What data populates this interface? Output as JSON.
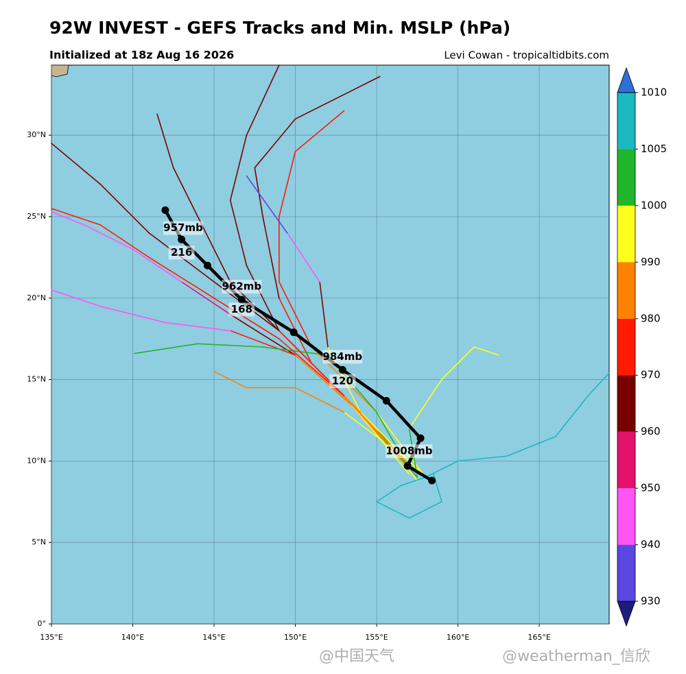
{
  "chart_data": {
    "type": "track",
    "title": "92W INVEST - GEFS Tracks and Min. MSLP (hPa)",
    "subtitle": "Initialized at 18z Aug 16 2026",
    "credit": "Levi Cowan - tropicaltidbits.com",
    "xlim": [
      135,
      169.3
    ],
    "ylim": [
      0,
      34.3
    ],
    "xticks": [
      {
        "value": 135,
        "label": "135°E"
      },
      {
        "value": 140,
        "label": "140°E"
      },
      {
        "value": 145,
        "label": "145°E"
      },
      {
        "value": 150,
        "label": "150°E"
      },
      {
        "value": 155,
        "label": "155°E"
      },
      {
        "value": 160,
        "label": "160°E"
      },
      {
        "value": 165,
        "label": "165°E"
      }
    ],
    "yticks": [
      {
        "value": 0,
        "label": "0°"
      },
      {
        "value": 5,
        "label": "5°N"
      },
      {
        "value": 10,
        "label": "10°N"
      },
      {
        "value": 15,
        "label": "15°N"
      },
      {
        "value": 20,
        "label": "20°N"
      },
      {
        "value": 25,
        "label": "25°N"
      },
      {
        "value": 30,
        "label": "30°N"
      }
    ],
    "grid": true,
    "colorbar": {
      "levels": [
        930,
        940,
        950,
        960,
        970,
        980,
        990,
        1000,
        1005,
        1010
      ],
      "colors": [
        "#5a48e0",
        "#ff55f5",
        "#e4126c",
        "#780000",
        "#ff1a00",
        "#ff8200",
        "#ffff1e",
        "#20b52a",
        "#1bb8c2"
      ],
      "under": "#1d1d80",
      "over": "#2f6fd6"
    },
    "members": [
      {
        "x": [
          157.5,
          155,
          152,
          149,
          147,
          146,
          147,
          149
        ],
        "y": [
          9,
          12,
          15,
          18,
          22,
          26,
          30,
          34.3
        ],
        "mslp": [
          1006,
          1000,
          990,
          975,
          965,
          962,
          962,
          965
        ]
      },
      {
        "x": [
          157,
          154,
          151,
          149,
          148,
          147.5,
          150,
          155.2
        ],
        "y": [
          9.5,
          13,
          16,
          20,
          25,
          28,
          31,
          33.6
        ],
        "mslp": [
          1006,
          998,
          985,
          975,
          968,
          966,
          965,
          965
        ]
      },
      {
        "x": [
          158,
          155,
          151,
          149,
          149,
          150,
          153
        ],
        "y": [
          9,
          13,
          17,
          21,
          25,
          29,
          31.5
        ],
        "mslp": [
          1006,
          995,
          982,
          975,
          975,
          978,
          978
        ]
      },
      {
        "x": [
          157.5,
          154.5,
          150,
          146,
          143,
          140,
          137,
          135
        ],
        "y": [
          8.8,
          12.5,
          16.5,
          19,
          21,
          23,
          24.5,
          25.3
        ],
        "mslp": [
          1006,
          997,
          985,
          965,
          950,
          945,
          945,
          945
        ]
      },
      {
        "x": [
          157,
          153,
          149,
          145,
          141,
          138,
          135
        ],
        "y": [
          9.2,
          14,
          18,
          21,
          24,
          27,
          29.5
        ],
        "mslp": [
          1006,
          990,
          975,
          963,
          962,
          962,
          962
        ]
      },
      {
        "x": [
          157,
          154,
          152,
          151.5,
          149.5,
          147
        ],
        "y": [
          9.5,
          13,
          17,
          21,
          24,
          27.5
        ],
        "mslp": [
          1006,
          1000,
          990,
          960,
          940,
          935
        ]
      },
      {
        "x": [
          158,
          154,
          150,
          146,
          142,
          138,
          135
        ],
        "y": [
          9,
          13,
          16.5,
          18,
          18.5,
          19.5,
          20.5
        ],
        "mslp": [
          1006,
          998,
          988,
          970,
          945,
          940,
          940
        ]
      },
      {
        "x": [
          158,
          160,
          163,
          166,
          168,
          169.3
        ],
        "y": [
          9,
          10,
          10.3,
          11.5,
          14,
          15.4
        ],
        "mslp": [
          1008,
          1008,
          1008,
          1007,
          1006,
          1006
        ]
      },
      {
        "x": [
          157.5,
          157,
          159,
          161,
          162.5
        ],
        "y": [
          9,
          12,
          15,
          17,
          16.5
        ],
        "mslp": [
          1006,
          1002,
          995,
          992,
          992
        ]
      },
      {
        "x": [
          157,
          155,
          152,
          148,
          144,
          140.1
        ],
        "y": [
          9.5,
          13,
          16.5,
          17,
          17.2,
          16.6
        ],
        "mslp": [
          1004,
          1002,
          1001,
          1001,
          1002,
          1003
        ]
      },
      {
        "x": [
          157,
          153,
          150,
          147,
          145
        ],
        "y": [
          10,
          13,
          14.5,
          14.5,
          15.5
        ],
        "mslp": [
          1005,
          995,
          988,
          985,
          985
        ]
      },
      {
        "x": [
          158,
          156.5,
          155,
          157,
          159,
          158.5
        ],
        "y": [
          9,
          8.5,
          7.5,
          6.5,
          7.5,
          9.2
        ],
        "mslp": [
          1008,
          1008,
          1008,
          1008,
          1008,
          1008
        ]
      },
      {
        "x": [
          157.5,
          153,
          149,
          145,
          141,
          138,
          135
        ],
        "y": [
          9.2,
          14,
          17.5,
          20,
          22.5,
          24.5,
          25.5
        ],
        "mslp": [
          1004,
          988,
          975,
          972,
          972,
          972,
          972
        ]
      },
      {
        "x": [
          157,
          153,
          149,
          146,
          144,
          142.5,
          141.5
        ],
        "y": [
          9.5,
          14,
          18,
          21,
          25,
          28,
          31.3
        ],
        "mslp": [
          1004,
          985,
          970,
          962,
          960,
          960,
          960
        ]
      }
    ],
    "mean_track": {
      "color": "#000000",
      "x": [
        142.0,
        143.0,
        144.6,
        146.7,
        149.9,
        152.9,
        155.6,
        157.7,
        156.9,
        158.4
      ],
      "y": [
        25.4,
        23.6,
        22.0,
        19.9,
        17.9,
        15.6,
        13.7,
        11.4,
        9.7,
        8.8
      ]
    },
    "annotations": [
      {
        "text": "957mb",
        "lon": 143.1,
        "lat": 24.3
      },
      {
        "text": "216",
        "lon": 143.0,
        "lat": 22.8
      },
      {
        "text": "962mb",
        "lon": 146.7,
        "lat": 20.7
      },
      {
        "text": "168",
        "lon": 146.7,
        "lat": 19.3
      },
      {
        "text": "984mb",
        "lon": 152.9,
        "lat": 16.4
      },
      {
        "text": "120",
        "lon": 152.9,
        "lat": 14.9
      },
      {
        "text": "1008mb",
        "lon": 157.0,
        "lat": 10.6
      }
    ],
    "watermarks": [
      "@中国天气",
      "@weatherman_信欣"
    ]
  }
}
